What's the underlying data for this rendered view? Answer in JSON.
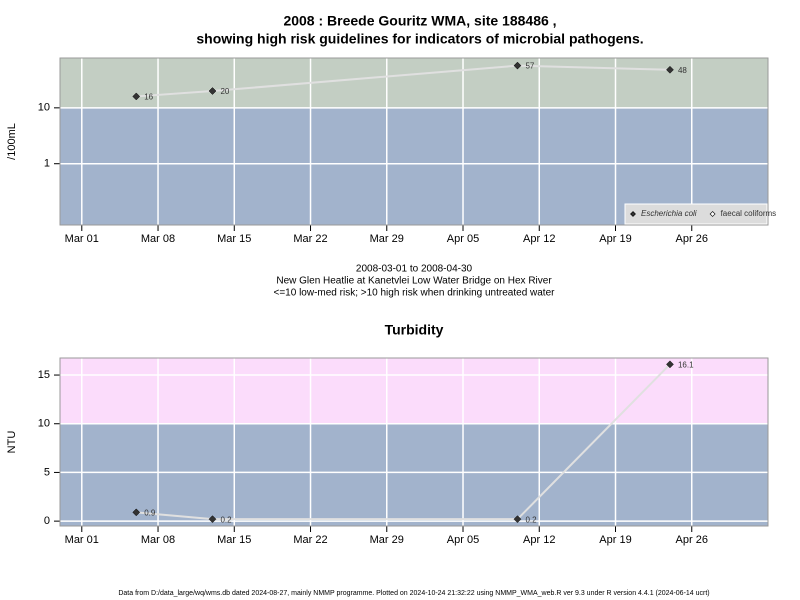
{
  "chart_data": [
    {
      "type": "line",
      "title": [
        "2008 : Breede Gouritz WMA, site 188486 ,",
        "showing high risk guidelines for indicators of microbial pathogens."
      ],
      "subtitle": [
        "2008-03-01 to 2008-04-30",
        "New Glen Heatlie at Kanetvlei Low Water Bridge on Hex River",
        "<=10 low-med risk; >10 high risk when drinking untreated water"
      ],
      "y_label": "/100mL",
      "x": [
        "2008-03-06",
        "2008-03-13",
        "2008-04-10",
        "2008-04-24"
      ],
      "series": [
        {
          "name": "Escherichia coli",
          "color": "#333333",
          "values": [
            16,
            20,
            57,
            48
          ]
        },
        {
          "name": "faecal coliforms",
          "color": "#ffffff",
          "values": [
            null,
            null,
            null,
            null
          ]
        }
      ],
      "xlim": [
        "2008-02-28",
        "2008-05-03"
      ],
      "xticks": [
        {
          "value": "2008-03-01",
          "label": "Mar 01"
        },
        {
          "value": "2008-03-08",
          "label": "Mar 08"
        },
        {
          "value": "2008-03-15",
          "label": "Mar 15"
        },
        {
          "value": "2008-03-22",
          "label": "Mar 22"
        },
        {
          "value": "2008-03-29",
          "label": "Mar 29"
        },
        {
          "value": "2008-04-05",
          "label": "Apr 05"
        },
        {
          "value": "2008-04-12",
          "label": "Apr 12"
        },
        {
          "value": "2008-04-19",
          "label": "Apr 19"
        },
        {
          "value": "2008-04-26",
          "label": "Apr 26"
        }
      ],
      "ylim": [
        0.08,
        78
      ],
      "yticks": [
        1,
        10
      ],
      "log_y": true,
      "threshold": 10,
      "band_colors": {
        "above": "#c3cec3",
        "below": "#a2b3cc"
      },
      "line_color": "#e0e0e0",
      "grid": true,
      "legend": "bottom-right"
    },
    {
      "type": "line",
      "title": "Turbidity",
      "y_label": "NTU",
      "x": [
        "2008-03-06",
        "2008-03-13",
        "2008-04-10",
        "2008-04-24"
      ],
      "series": [
        {
          "color": "#333333",
          "values": [
            0.9,
            0.2,
            0.2,
            16.1
          ]
        }
      ],
      "xlim": [
        "2008-02-28",
        "2008-05-03"
      ],
      "xticks": [
        {
          "value": "2008-03-01",
          "label": "Mar 01"
        },
        {
          "value": "2008-03-08",
          "label": "Mar 08"
        },
        {
          "value": "2008-03-15",
          "label": "Mar 15"
        },
        {
          "value": "2008-03-22",
          "label": "Mar 22"
        },
        {
          "value": "2008-03-29",
          "label": "Mar 29"
        },
        {
          "value": "2008-04-05",
          "label": "Apr 05"
        },
        {
          "value": "2008-04-12",
          "label": "Apr 12"
        },
        {
          "value": "2008-04-19",
          "label": "Apr 19"
        },
        {
          "value": "2008-04-26",
          "label": "Apr 26"
        }
      ],
      "ylim": [
        -0.5,
        16.75
      ],
      "yticks": [
        0,
        5,
        10,
        15
      ],
      "log_y": false,
      "threshold": 10,
      "band_colors": {
        "above": "#fbdcfb",
        "below": "#a2b3cc"
      },
      "line_color": "#e0e0e0",
      "grid": true
    }
  ],
  "footer": "Data from D:/data_large/wq/wms.db dated 2024-08-27, mainly NMMP programme. Plotted on 2024-10-24 21:32:22 using NMMP_WMA_web.R ver 9.3 under R version 4.4.1 (2024-06-14 ucrt)"
}
